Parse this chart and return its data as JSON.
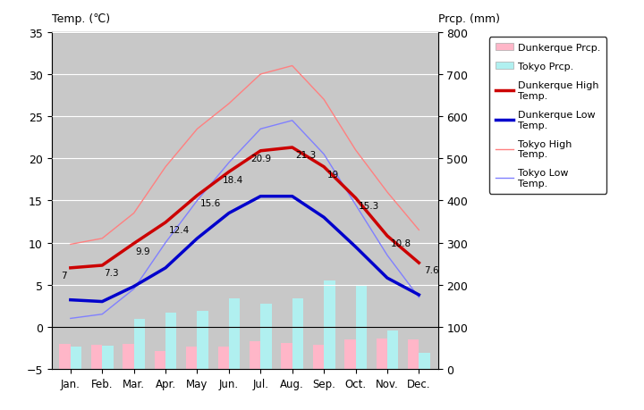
{
  "months": [
    "Jan.",
    "Feb.",
    "Mar.",
    "Apr.",
    "May",
    "Jun.",
    "Jul.",
    "Aug.",
    "Sep.",
    "Oct.",
    "Nov.",
    "Dec."
  ],
  "dunkerque_high": [
    7.0,
    7.3,
    9.9,
    12.4,
    15.6,
    18.4,
    20.9,
    21.3,
    19.0,
    15.3,
    10.8,
    7.6
  ],
  "dunkerque_low": [
    3.2,
    3.0,
    4.8,
    7.0,
    10.5,
    13.5,
    15.5,
    15.5,
    13.0,
    9.5,
    5.8,
    3.8
  ],
  "tokyo_high": [
    9.8,
    10.5,
    13.5,
    19.0,
    23.5,
    26.5,
    30.0,
    31.0,
    27.0,
    21.0,
    16.0,
    11.5
  ],
  "tokyo_low": [
    1.0,
    1.5,
    4.5,
    10.0,
    15.0,
    19.5,
    23.5,
    24.5,
    20.5,
    14.5,
    8.5,
    3.5
  ],
  "dunkerque_prcp_mm": [
    60,
    58,
    60,
    43,
    52,
    52,
    65,
    62,
    58,
    70,
    72,
    70
  ],
  "tokyo_prcp_mm": [
    52,
    56,
    118,
    133,
    138,
    168,
    154,
    168,
    210,
    197,
    92,
    39
  ],
  "high_labels": [
    "7",
    "7.3",
    "9.9",
    "12.4",
    "15.6",
    "18.4",
    "20.9",
    "21.3",
    "19",
    "15.3",
    "10.8",
    "7.6"
  ],
  "title_left": "Temp. (℃)",
  "title_right": "Prcp. (mm)",
  "ylim_left": [
    -5,
    35
  ],
  "ylim_right": [
    0,
    800
  ],
  "bg_color": "#c8c8c8",
  "dunkerque_high_color": "#cc0000",
  "dunkerque_low_color": "#0000cc",
  "tokyo_high_color": "#ff8080",
  "tokyo_low_color": "#8080ff",
  "dunkerque_prcp_color": "#ffb6c8",
  "tokyo_prcp_color": "#b0f0f0"
}
